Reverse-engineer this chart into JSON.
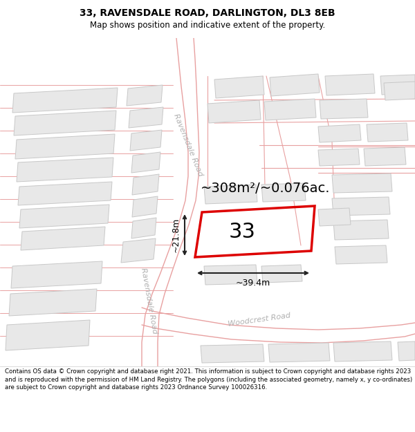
{
  "title": "33, RAVENSDALE ROAD, DARLINGTON, DL3 8EB",
  "subtitle": "Map shows position and indicative extent of the property.",
  "footer": "Contains OS data © Crown copyright and database right 2021. This information is subject to Crown copyright and database rights 2023 and is reproduced with the permission of HM Land Registry. The polygons (including the associated geometry, namely x, y co-ordinates) are subject to Crown copyright and database rights 2023 Ordnance Survey 100026316.",
  "property_number": "33",
  "area_text": "~308m²/~0.076ac.",
  "dim_width": "~39.4m",
  "dim_height": "~21.8m",
  "map_bg": "#ffffff",
  "header_bg": "#ffffff",
  "footer_bg": "#ffffff",
  "building_fill": "#e8e8e8",
  "building_edge": "#c8c8c8",
  "road_line_color": "#e8a0a0",
  "property_edge": "#dd0000",
  "dim_color": "#222222",
  "road_label_color": "#b0b0b0",
  "title_fontsize": 10,
  "subtitle_fontsize": 8.5,
  "area_fontsize": 14,
  "property_fontsize": 22,
  "road_label_fontsize": 8,
  "dim_fontsize": 9,
  "footer_fontsize": 6.2
}
